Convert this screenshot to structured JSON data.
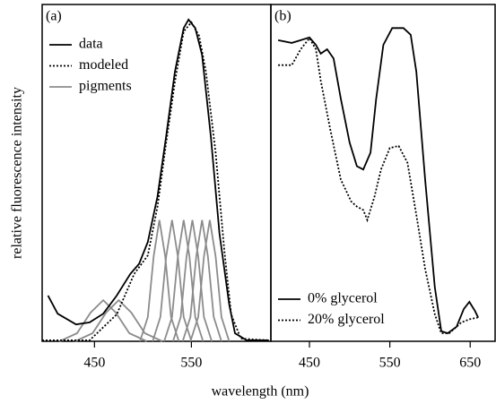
{
  "xlabel": "wavelength (nm)",
  "ylabel": "relative fluorescence intensity",
  "chart_data": [
    {
      "type": "line",
      "label": "(a)",
      "legend": "upper left",
      "xlim": [
        396,
        632
      ],
      "xticks": [
        450,
        550
      ],
      "ylim": [
        0,
        1
      ],
      "series": [
        {
          "name": "data",
          "color": "#000000",
          "linestyle": "solid",
          "x": [
            402,
            412,
            431,
            445,
            459,
            473,
            487,
            496,
            505,
            515,
            524,
            533,
            542,
            547,
            554,
            561,
            570,
            579,
            589,
            595,
            607,
            630
          ],
          "values": [
            0.136,
            0.082,
            0.05,
            0.056,
            0.082,
            0.136,
            0.2,
            0.23,
            0.295,
            0.43,
            0.61,
            0.8,
            0.93,
            0.955,
            0.93,
            0.85,
            0.61,
            0.32,
            0.11,
            0.024,
            0.003,
            0.003
          ]
        },
        {
          "name": "modeled",
          "color": "#000000",
          "linestyle": "dotted",
          "x": [
            396,
            445,
            473,
            491,
            505,
            515,
            524,
            533,
            542,
            550,
            558,
            565,
            575,
            584,
            591,
            601,
            630
          ],
          "values": [
            0.003,
            0.003,
            0.08,
            0.2,
            0.255,
            0.4,
            0.59,
            0.77,
            0.92,
            0.947,
            0.907,
            0.8,
            0.56,
            0.27,
            0.08,
            0.008,
            0.003
          ]
        }
      ],
      "pigments": {
        "name": "pigments",
        "color": "#8c8c8c",
        "curves": [
          {
            "x": [
              414,
              432,
              446,
              459,
              472,
              486,
              504
            ],
            "values": [
              0,
              0.024,
              0.085,
              0.122,
              0.085,
              0.024,
              0
            ]
          },
          {
            "x": [
              430,
              448,
              462,
              475,
              488,
              502,
              520
            ],
            "values": [
              0,
              0.024,
              0.085,
              0.122,
              0.085,
              0.024,
              0
            ]
          },
          {
            "x": [
              497,
              505,
              511,
              517,
              523,
              529,
              537
            ],
            "values": [
              0,
              0.072,
              0.252,
              0.36,
              0.252,
              0.072,
              0
            ]
          },
          {
            "x": [
              510,
              518,
              524,
              530,
              536,
              542,
              550
            ],
            "values": [
              0,
              0.072,
              0.252,
              0.36,
              0.252,
              0.072,
              0
            ]
          },
          {
            "x": [
              522,
              530,
              536,
              542,
              548,
              554,
              562
            ],
            "values": [
              0,
              0.072,
              0.252,
              0.36,
              0.252,
              0.072,
              0
            ]
          },
          {
            "x": [
              531,
              539,
              545,
              551,
              557,
              563,
              571
            ],
            "values": [
              0,
              0.072,
              0.252,
              0.36,
              0.252,
              0.072,
              0
            ]
          },
          {
            "x": [
              541,
              549,
              555,
              561,
              567,
              573,
              581
            ],
            "values": [
              0,
              0.072,
              0.252,
              0.36,
              0.252,
              0.072,
              0
            ]
          },
          {
            "x": [
              549,
              557,
              563,
              569,
              575,
              581,
              589
            ],
            "values": [
              0,
              0.072,
              0.252,
              0.36,
              0.252,
              0.072,
              0
            ]
          }
        ]
      }
    },
    {
      "type": "line",
      "label": "(b)",
      "legend": "lower left",
      "xlim": [
        402,
        681
      ],
      "xticks": [
        450,
        550,
        650
      ],
      "ylim": [
        0,
        1
      ],
      "series": [
        {
          "name": "0% glycerol",
          "color": "#000000",
          "linestyle": "solid",
          "x": [
            411,
            428,
            439,
            450,
            458,
            464,
            472,
            480,
            489,
            500,
            509,
            517,
            526,
            533,
            542,
            553,
            567,
            576,
            583,
            594,
            606,
            614,
            622,
            633,
            642,
            649,
            656,
            660
          ],
          "values": [
            0.894,
            0.886,
            0.894,
            0.902,
            0.88,
            0.854,
            0.867,
            0.84,
            0.72,
            0.59,
            0.52,
            0.51,
            0.56,
            0.72,
            0.88,
            0.93,
            0.93,
            0.91,
            0.8,
            0.48,
            0.16,
            0.03,
            0.024,
            0.043,
            0.096,
            0.117,
            0.09,
            0.07
          ]
        },
        {
          "name": "20% glycerol",
          "color": "#000000",
          "linestyle": "dotted",
          "x": [
            411,
            428,
            439,
            450,
            458,
            464,
            476,
            489,
            502,
            509,
            517,
            522,
            531,
            539,
            550,
            561,
            572,
            583,
            594,
            606,
            614,
            624,
            639,
            650,
            659
          ],
          "values": [
            0.82,
            0.82,
            0.867,
            0.9,
            0.867,
            0.774,
            0.628,
            0.48,
            0.415,
            0.4,
            0.39,
            0.36,
            0.43,
            0.51,
            0.574,
            0.58,
            0.53,
            0.375,
            0.215,
            0.08,
            0.024,
            0.024,
            0.056,
            0.066,
            0.07
          ]
        }
      ]
    }
  ]
}
